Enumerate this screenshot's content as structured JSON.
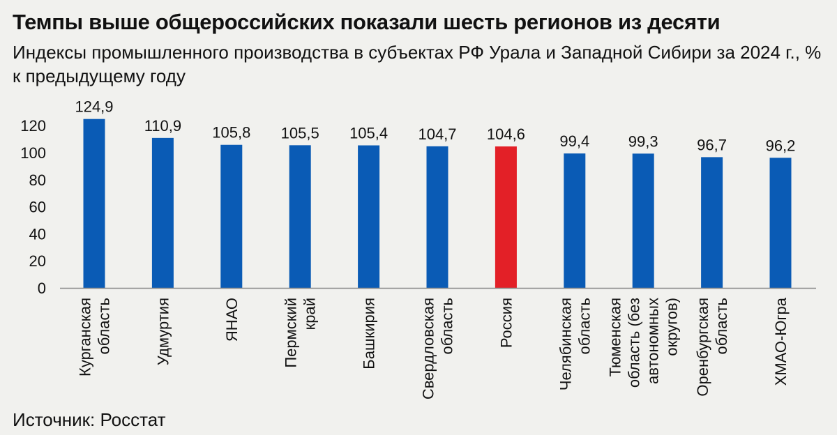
{
  "header": {
    "title": "Темпы выше общероссийских показали шесть регионов из десяти",
    "subtitle": "Индексы промышленного производства в субъектах РФ Урала и Западной Сибири за 2024 г., % к предыдущему году"
  },
  "footer": {
    "source": "Источник: Росстат"
  },
  "colors": {
    "bar": "#0a5bb5",
    "highlight": "#e32027",
    "axis": "#8a8a8a",
    "grid": "#d9d9d6"
  },
  "chart_data": {
    "type": "bar",
    "title": "Темпы выше общероссийских показали шесть регионов из десяти",
    "subtitle": "Индексы промышленного производства в субъектах РФ Урала и Западной Сибири за 2024 г., % к предыдущему году",
    "xlabel": "",
    "ylabel": "",
    "ylim": [
      0,
      120
    ],
    "yticks": [
      "0",
      "20",
      "40",
      "60",
      "80",
      "100",
      "120"
    ],
    "grid": false,
    "highlight_category": "Россия",
    "categories": [
      {
        "lines": [
          "Курганская",
          "область"
        ]
      },
      {
        "lines": [
          "Удмуртия"
        ]
      },
      {
        "lines": [
          "ЯНАО"
        ]
      },
      {
        "lines": [
          "Пермский",
          "край"
        ]
      },
      {
        "lines": [
          "Башкирия"
        ]
      },
      {
        "lines": [
          "Свердловская",
          "область"
        ]
      },
      {
        "lines": [
          "Россия"
        ]
      },
      {
        "lines": [
          "Челябинская",
          "область"
        ]
      },
      {
        "lines": [
          "Тюменская",
          "область (без",
          "автономных",
          "округов)"
        ]
      },
      {
        "lines": [
          "Оренбургская",
          "область"
        ]
      },
      {
        "lines": [
          "ХМАО-Югра"
        ]
      }
    ],
    "values": [
      124.9,
      110.9,
      105.8,
      105.5,
      105.4,
      104.7,
      104.6,
      99.4,
      99.3,
      96.7,
      96.2
    ],
    "value_labels": [
      "124,9",
      "110,9",
      "105,8",
      "105,5",
      "105,4",
      "104,7",
      "104,6",
      "99,4",
      "99,3",
      "96,7",
      "96,2"
    ]
  }
}
